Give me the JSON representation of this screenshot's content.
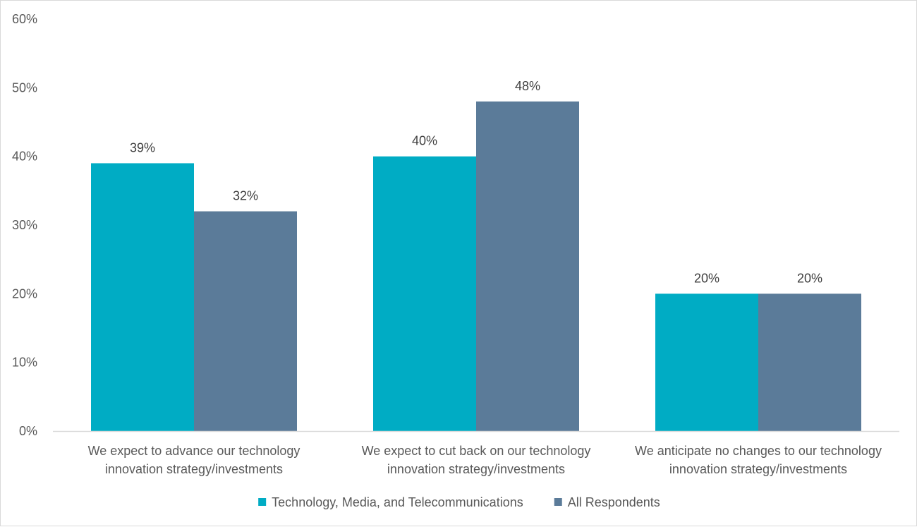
{
  "chart_data": {
    "type": "bar",
    "title": "",
    "xlabel": "",
    "ylabel": "",
    "ylim": [
      0,
      60
    ],
    "yticks": [
      0,
      10,
      20,
      30,
      40,
      50,
      60
    ],
    "ytick_format": "percent",
    "grid": false,
    "legend_position": "bottom",
    "categories": [
      [
        "We expect to advance our technology",
        "innovation strategy/investments"
      ],
      [
        "We expect to cut back on our technology",
        "innovation strategy/investments"
      ],
      [
        "We anticipate no changes to our technology",
        "innovation strategy/investments"
      ]
    ],
    "series": [
      {
        "name": "Technology, Media, and Telecommunications",
        "color": "#00acc4",
        "values": [
          39,
          40,
          20
        ]
      },
      {
        "name": "All Respondents",
        "color": "#5b7b99",
        "values": [
          32,
          48,
          20
        ]
      }
    ],
    "data_labels": true
  }
}
